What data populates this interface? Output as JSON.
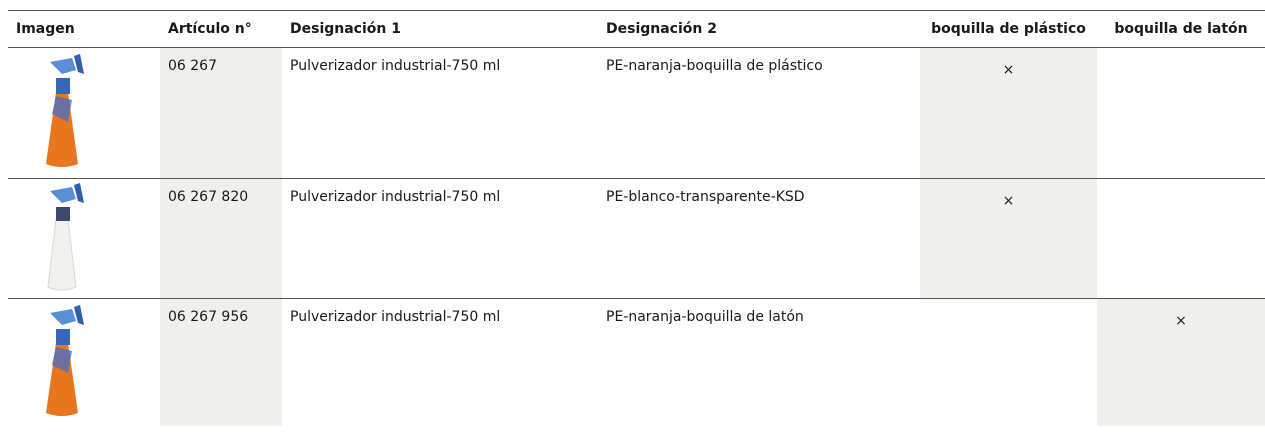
{
  "table": {
    "header": [
      "Imagen",
      "Artículo n°",
      "Designación 1",
      "Designación 2",
      "boquilla de plástico",
      "boquilla de latón"
    ],
    "rows": [
      {
        "article": "06 267",
        "designation_1": "Pulverizador industrial-750 ml",
        "designation_2": "PE-naranja-boquilla de plástico",
        "plastic_nozzle": "×"
      },
      {
        "article": "06 267 820",
        "designation_1": "Pulverizador industrial-750 ml",
        "designation_2": "PE-blanco-transparente-KSD",
        "plastic_nozzle": "×"
      },
      {
        "article": "06 267 956",
        "designation_1": "Pulverizador industrial-750 ml",
        "designation_2": "PE-naranja-boquilla de latón",
        "brass_nozzle": "×"
      }
    ]
  }
}
